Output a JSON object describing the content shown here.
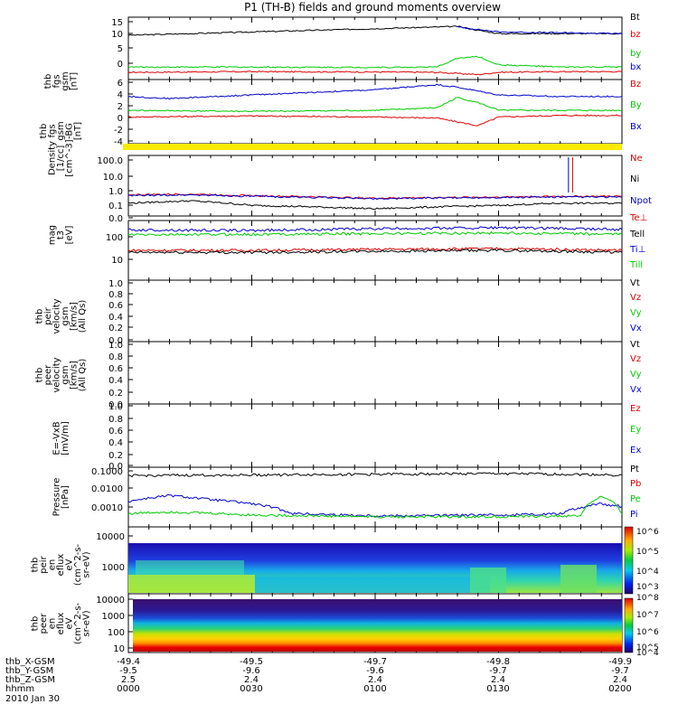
{
  "title": "P1 (TH-B) fields and ground moments overview",
  "footer": {
    "rows": [
      {
        "label": "thb_X-GSM",
        "values": [
          "-49.4",
          "-49.5",
          "-49.7",
          "-49.8",
          "-49.9"
        ]
      },
      {
        "label": "thb_Y-GSM",
        "values": [
          "-9.5",
          "-9.6",
          "-9.6",
          "-9.7",
          "-9.7"
        ]
      },
      {
        "label": "thb_Z-GSM",
        "values": [
          "2.5",
          "2.4",
          "2.4",
          "2.4",
          "2.4"
        ]
      },
      {
        "label": "hhmm",
        "values": [
          "0000",
          "0030",
          "0100",
          "0130",
          "0200"
        ]
      }
    ],
    "date": "2010 Jan 30"
  },
  "chart_data": [
    {
      "type": "line",
      "panel": "fgs",
      "ylabel": [
        "thb",
        "fgs",
        "gsm",
        "[nT]"
      ],
      "ylim": [
        -3,
        16
      ],
      "ticks": [
        "15",
        "10",
        "5",
        "0"
      ],
      "legend": [
        {
          "name": "Bt",
          "color": "#000000"
        },
        {
          "name": "bz",
          "color": "#dd0000"
        },
        {
          "name": "by",
          "color": "#00cc00"
        },
        {
          "name": "bx",
          "color": "#0000cc"
        }
      ],
      "series": [
        {
          "name": "Bt",
          "color": "#000000",
          "x_hhmm": [
            "0000",
            "0015",
            "0030",
            "0045",
            "0100",
            "0115",
            "0120",
            "0125",
            "0130",
            "0145",
            "0200"
          ],
          "values": [
            10.5,
            11.0,
            11.5,
            12.0,
            12.5,
            13.0,
            13.2,
            12.0,
            11.0,
            11.0,
            11.0
          ]
        },
        {
          "name": "by",
          "color": "#00cc00",
          "x_hhmm": [
            "0000",
            "0030",
            "0100",
            "0115",
            "0120",
            "0125",
            "0130",
            "0145",
            "0200"
          ],
          "values": [
            0.8,
            0.8,
            0.7,
            0.8,
            3.5,
            4.0,
            1.5,
            0.8,
            0.8
          ]
        },
        {
          "name": "bz",
          "color": "#dd0000",
          "x_hhmm": [
            "0000",
            "0030",
            "0100",
            "0115",
            "0125",
            "0130",
            "0145",
            "0200"
          ],
          "values": [
            -0.8,
            -0.6,
            -0.7,
            -0.8,
            -1.5,
            -0.8,
            -0.6,
            -0.6
          ]
        },
        {
          "name": "bx",
          "color": "#0000cc",
          "x_hhmm": [
            "0120",
            "0130",
            "0200"
          ],
          "values": [
            13.0,
            11.5,
            11.0
          ]
        }
      ]
    },
    {
      "type": "line",
      "panel": "fgs-dsl",
      "ylabel": [
        "thb",
        "fgs",
        "gsm",
        "-BG",
        "[nT]"
      ],
      "ylim": [
        -6,
        6.5
      ],
      "ticks": [
        "6",
        "4",
        "2",
        "0",
        "-2",
        "-4"
      ],
      "legend": [
        {
          "name": "Bz",
          "color": "#dd0000"
        },
        {
          "name": "By",
          "color": "#00cc00"
        },
        {
          "name": "Bx",
          "color": "#0000cc"
        }
      ],
      "series": [
        {
          "name": "Bx",
          "color": "#0000cc",
          "x_hhmm": [
            "0000",
            "0010",
            "0030",
            "0100",
            "0115",
            "0120",
            "0130",
            "0145",
            "0200"
          ],
          "values": [
            3.2,
            2.8,
            3.5,
            4.5,
            5.5,
            5.0,
            3.5,
            3.2,
            3.2
          ]
        },
        {
          "name": "By",
          "color": "#00cc00",
          "x_hhmm": [
            "0000",
            "0030",
            "0100",
            "0115",
            "0120",
            "0125",
            "0130",
            "0145",
            "0200"
          ],
          "values": [
            0.5,
            0.3,
            0.5,
            1.0,
            3.0,
            2.0,
            0.5,
            0.5,
            0.5
          ]
        },
        {
          "name": "Bz",
          "color": "#dd0000",
          "x_hhmm": [
            "0000",
            "0030",
            "0100",
            "0115",
            "0125",
            "0130",
            "0145",
            "0200"
          ],
          "values": [
            -0.8,
            -0.6,
            -0.8,
            -1.0,
            -2.5,
            -0.8,
            -0.5,
            -0.5
          ]
        }
      ]
    },
    {
      "type": "line",
      "panel": "density",
      "ylabel": [
        "Density",
        "[1/cc]",
        "[cm^-3]"
      ],
      "scale": "log",
      "ylim": [
        0.01,
        100
      ],
      "ticks": [
        "100.0",
        "10.0",
        "1.0",
        "0.1",
        "0.0"
      ],
      "legend": [
        {
          "name": "Ne",
          "color": "#dd0000"
        },
        {
          "name": "Ni",
          "color": "#000000"
        },
        {
          "name": "Npot",
          "color": "#0000cc"
        },
        {
          "name": "Te⊥",
          "color": "#dd0000"
        }
      ],
      "series": [
        {
          "name": "Ne",
          "color": "#dd0000",
          "x_hhmm": [
            "0000",
            "0015",
            "0030",
            "0100",
            "0130",
            "0145",
            "0150",
            "0200"
          ],
          "values": [
            0.25,
            0.28,
            0.22,
            0.15,
            0.18,
            0.2,
            0.2,
            0.2
          ]
        },
        {
          "name": "Npot",
          "color": "#0000cc",
          "x_hhmm": [
            "0000",
            "0015",
            "0030",
            "0100",
            "0130",
            "0145",
            "0150",
            "0200"
          ],
          "values": [
            0.22,
            0.25,
            0.2,
            0.14,
            0.17,
            0.18,
            0.18,
            0.18
          ]
        },
        {
          "name": "Ni",
          "color": "#000000",
          "x_hhmm": [
            "0000",
            "0015",
            "0030",
            "0100",
            "0130",
            "0145",
            "0200"
          ],
          "values": [
            0.07,
            0.1,
            0.05,
            0.03,
            0.05,
            0.07,
            0.07
          ]
        }
      ]
    },
    {
      "type": "line",
      "panel": "temperature",
      "ylabel": [
        "mag",
        "t3",
        "[eV]"
      ],
      "scale": "log",
      "ylim": [
        3,
        1000
      ],
      "ticks": [
        "100",
        "10"
      ],
      "legend": [
        {
          "name": "Tell",
          "color": "#000000"
        },
        {
          "name": "Ti⊥",
          "color": "#0000cc"
        },
        {
          "name": "Till",
          "color": "#00cc00"
        }
      ],
      "series": [
        {
          "name": "Ti⊥",
          "color": "#0000cc",
          "x_hhmm": [
            "0000",
            "0030",
            "0100",
            "0130",
            "0200"
          ],
          "values": [
            400,
            380,
            450,
            500,
            420
          ]
        },
        {
          "name": "Till",
          "color": "#00cc00",
          "x_hhmm": [
            "0000",
            "0030",
            "0100",
            "0130",
            "0200"
          ],
          "values": [
            250,
            260,
            280,
            300,
            260
          ]
        },
        {
          "name": "Te⊥",
          "color": "#dd0000",
          "x_hhmm": [
            "0000",
            "0030",
            "0100",
            "0130",
            "0200"
          ],
          "values": [
            55,
            55,
            60,
            65,
            55
          ]
        },
        {
          "name": "Tell",
          "color": "#000000",
          "x_hhmm": [
            "0000",
            "0030",
            "0100",
            "0130",
            "0200"
          ],
          "values": [
            45,
            45,
            50,
            55,
            45
          ]
        }
      ]
    },
    {
      "type": "line",
      "panel": "peir-velocity",
      "ylabel": [
        "thb",
        "peir",
        "velocity",
        "gsm",
        "[km/s]",
        "(All Qs)"
      ],
      "ylim": [
        0,
        1
      ],
      "ticks": [
        "1.0",
        "0.8",
        "0.6",
        "0.4",
        "0.2",
        "0.0"
      ],
      "legend": [
        {
          "name": "Vt",
          "color": "#000000"
        },
        {
          "name": "Vz",
          "color": "#dd0000"
        },
        {
          "name": "Vy",
          "color": "#00cc00"
        },
        {
          "name": "Vx",
          "color": "#0000cc"
        }
      ],
      "series": []
    },
    {
      "type": "line",
      "panel": "peer-velocity",
      "ylabel": [
        "thb",
        "peer",
        "velocity",
        "gsm",
        "[km/s]",
        "(All Qs)"
      ],
      "ylim": [
        0,
        1
      ],
      "ticks": [
        "1.0",
        "0.8",
        "0.6",
        "0.4",
        "0.2",
        "0.0"
      ],
      "legend": [
        {
          "name": "Vt",
          "color": "#000000"
        },
        {
          "name": "Vz",
          "color": "#dd0000"
        },
        {
          "name": "Vy",
          "color": "#00cc00"
        },
        {
          "name": "Vx",
          "color": "#0000cc"
        }
      ],
      "series": []
    },
    {
      "type": "line",
      "panel": "efield",
      "ylabel": [
        "E=-VxB",
        "[mV/m]"
      ],
      "ylim": [
        0,
        1
      ],
      "ticks": [
        "1.0",
        "0.8",
        "0.6",
        "0.4",
        "0.2",
        "0.0"
      ],
      "legend": [
        {
          "name": "Ez",
          "color": "#dd0000"
        },
        {
          "name": "Ey",
          "color": "#00cc00"
        },
        {
          "name": "Ex",
          "color": "#0000cc"
        }
      ],
      "series": []
    },
    {
      "type": "line",
      "panel": "pressure",
      "ylabel": [
        "Pressure",
        "[nPa]"
      ],
      "scale": "log",
      "ylim": [
        0.0004,
        0.15
      ],
      "ticks": [
        "0.1000",
        "0.0100",
        "0.0010"
      ],
      "legend": [
        {
          "name": "Pt",
          "color": "#000000"
        },
        {
          "name": "Pb",
          "color": "#dd0000"
        },
        {
          "name": "Pe",
          "color": "#00cc00"
        },
        {
          "name": "Pi",
          "color": "#0000cc"
        }
      ],
      "series": [
        {
          "name": "Pt",
          "color": "#000000",
          "x_hhmm": [
            "0000",
            "0030",
            "0100",
            "0130",
            "0200"
          ],
          "values": [
            0.065,
            0.07,
            0.075,
            0.08,
            0.07
          ]
        },
        {
          "name": "Pi",
          "color": "#0000cc",
          "x_hhmm": [
            "0000",
            "0010",
            "0020",
            "0030",
            "0040",
            "0100",
            "0130",
            "0145",
            "0155",
            "0200"
          ],
          "values": [
            0.005,
            0.009,
            0.006,
            0.004,
            0.0015,
            0.0012,
            0.0013,
            0.0015,
            0.004,
            0.003
          ]
        },
        {
          "name": "Pe",
          "color": "#00cc00",
          "x_hhmm": [
            "0000",
            "0010",
            "0030",
            "0100",
            "0130",
            "0150",
            "0155",
            "0200"
          ],
          "values": [
            0.0015,
            0.0018,
            0.0013,
            0.0011,
            0.0011,
            0.0012,
            0.008,
            0.0015
          ]
        }
      ]
    },
    {
      "type": "heatmap",
      "panel": "peir-eflux",
      "ylabel": [
        "thb",
        "peir",
        "en",
        "eflux",
        "eV",
        "(cm^2-s-",
        "sr-eV)"
      ],
      "ticks": [
        "10000",
        "1000"
      ],
      "colorbar": [
        "10^6",
        "10^5",
        "10^4",
        "10^3"
      ]
    },
    {
      "type": "heatmap",
      "panel": "peer-eflux",
      "ylabel": [
        "thb",
        "peer",
        "en",
        "eflux",
        "eV",
        "(cm^2-s-",
        "sr-eV)"
      ],
      "ticks": [
        "10000",
        "1000",
        "100",
        "10"
      ],
      "colorbar": [
        "10^8",
        "10^7",
        "10^6",
        "10^5",
        "10^4"
      ]
    }
  ]
}
